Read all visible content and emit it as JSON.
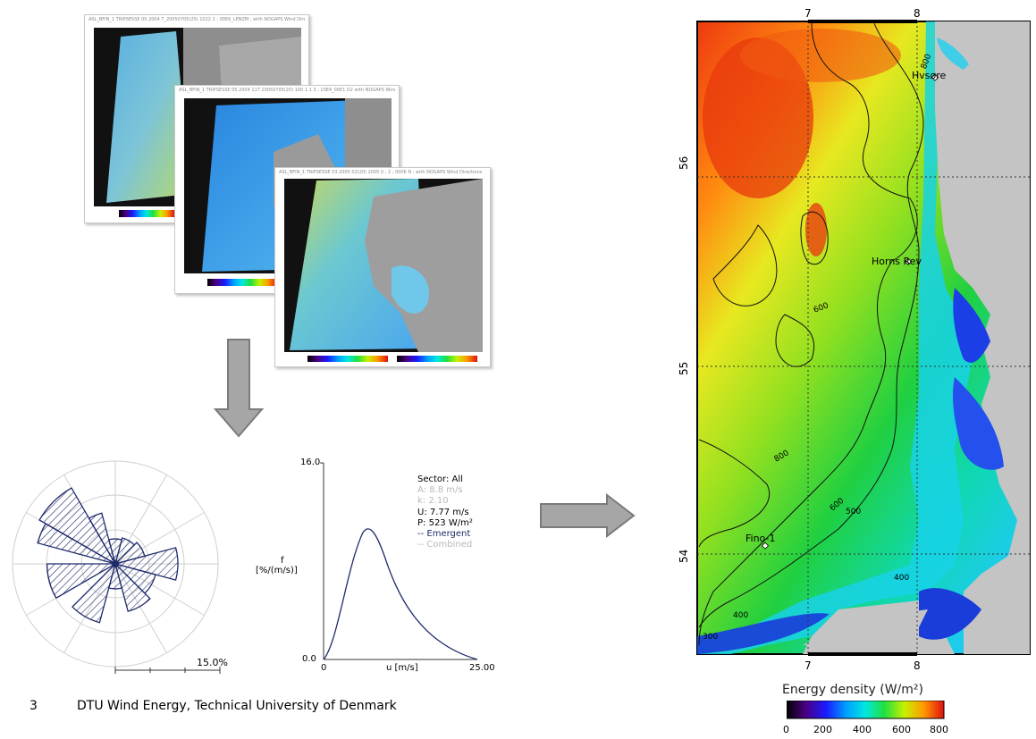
{
  "satellite_panels": {
    "header1": "ASL_BFIN_1 TRIPSESSE 05.2004 T_20050705(20) 1022 1 ; 00E6_LENZM ; with NOGAPS Wind Directions",
    "header2": "ASL_BFIN_1 TRIPSESSE 05.2004 11T 20050705(20) 100 1 1 3 ; 1SE4_00E1 D2 with NOGAPS Wind Directions",
    "header3": "ASL_BFIN_1 TRIPSESSE 03.2005 02(20) 2005 0 ; 2 ; 0006 N ; with NOGAPS Wind Directions"
  },
  "wind_rose": {
    "scale_label": "15.0%"
  },
  "weibull": {
    "y_max_label": "16.0",
    "y_min_label": "0.0",
    "x_min_label": "0",
    "x_max_label": "25.00",
    "y_axis_label_1": "f",
    "y_axis_label_2": "[%/(m/s)]",
    "x_axis_label": "u [m/s]",
    "legend": {
      "sector": "Sector: All",
      "a_value": "A: 8.8 m/s",
      "k_value": "k: 2.10",
      "u_value": "U: 7.77 m/s",
      "p_value": "P: 523 W/m²",
      "emergent": "-- Emergent",
      "combined": "-- Combined"
    }
  },
  "footer": {
    "page_number": "3",
    "organization": "DTU Wind Energy, Technical University of Denmark"
  },
  "map": {
    "lon_labels_top": [
      "7",
      "8"
    ],
    "lon_labels_bottom": [
      "7",
      "8"
    ],
    "lat_labels": [
      "56",
      "55",
      "54"
    ],
    "places": [
      "Hvsøre",
      "Horns Rev",
      "Fino-1"
    ],
    "contour_labels": [
      "800",
      "600",
      "800",
      "600",
      "500",
      "400",
      "400",
      "300"
    ],
    "colorbar_title": "Energy density (W/m²)",
    "colorbar_ticks": [
      "0",
      "200",
      "400",
      "600",
      "800"
    ]
  },
  "colors": {
    "arrow_fill": "#a6a6a6",
    "arrow_stroke": "#7a7a7a",
    "rose_line": "#1f2a6b",
    "land_gray": "#c4c4c4"
  }
}
